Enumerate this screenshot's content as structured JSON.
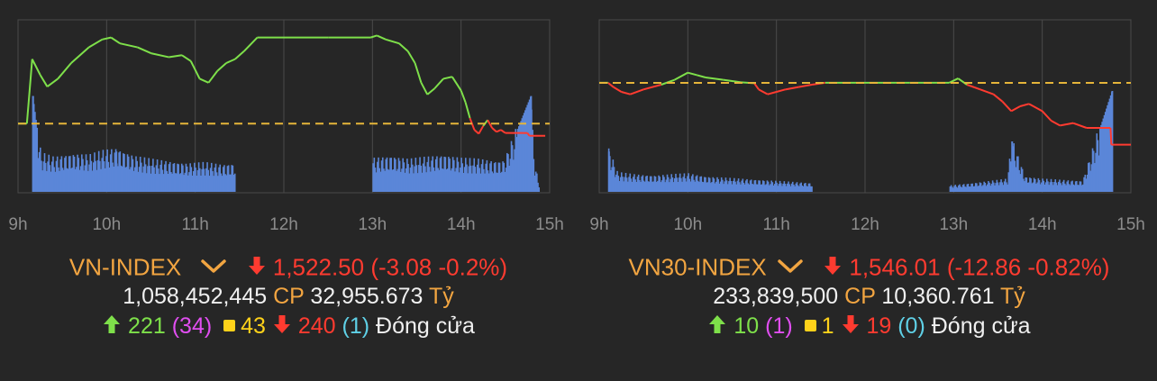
{
  "chart_data": [
    {
      "type": "line",
      "index": "VN-INDEX",
      "x_ticks": [
        "9h",
        "10h",
        "11h",
        "12h",
        "13h",
        "14h",
        "15h"
      ],
      "reference_level": 1525.58,
      "ylim": [
        1508,
        1552
      ],
      "volume_ylim": [
        0,
        100
      ],
      "price_series": [
        [
          9.0,
          1525.6
        ],
        [
          9.1,
          1525.6
        ],
        [
          9.16,
          1542.0
        ],
        [
          9.25,
          1538.0
        ],
        [
          9.33,
          1535.0
        ],
        [
          9.45,
          1537.0
        ],
        [
          9.6,
          1541.0
        ],
        [
          9.8,
          1545.0
        ],
        [
          9.95,
          1547.0
        ],
        [
          10.05,
          1547.5
        ],
        [
          10.15,
          1546.0
        ],
        [
          10.35,
          1545.0
        ],
        [
          10.5,
          1543.5
        ],
        [
          10.7,
          1542.5
        ],
        [
          10.85,
          1543.0
        ],
        [
          10.95,
          1541.5
        ],
        [
          11.05,
          1537.0
        ],
        [
          11.15,
          1536.0
        ],
        [
          11.25,
          1539.0
        ],
        [
          11.35,
          1541.0
        ],
        [
          11.45,
          1542.0
        ],
        [
          11.55,
          1544.0
        ],
        [
          11.7,
          1547.5
        ],
        [
          12.0,
          1547.5
        ],
        [
          12.5,
          1547.5
        ],
        [
          12.98,
          1547.5
        ],
        [
          13.05,
          1548.0
        ],
        [
          13.15,
          1547.0
        ],
        [
          13.3,
          1546.0
        ],
        [
          13.4,
          1544.0
        ],
        [
          13.48,
          1541.0
        ],
        [
          13.55,
          1536.0
        ],
        [
          13.62,
          1533.0
        ],
        [
          13.7,
          1534.5
        ],
        [
          13.8,
          1537.0
        ],
        [
          13.9,
          1537.5
        ],
        [
          14.0,
          1534.0
        ],
        [
          14.05,
          1531.0
        ],
        [
          14.1,
          1527.0
        ],
        [
          14.15,
          1524.0
        ],
        [
          14.2,
          1523.0
        ],
        [
          14.25,
          1525.0
        ],
        [
          14.3,
          1526.5
        ],
        [
          14.35,
          1524.5
        ],
        [
          14.4,
          1523.5
        ],
        [
          14.45,
          1524.0
        ],
        [
          14.5,
          1523.2
        ],
        [
          14.7,
          1523.2
        ],
        [
          14.75,
          1523.2
        ],
        [
          14.77,
          1522.5
        ],
        [
          14.95,
          1522.5
        ]
      ],
      "volume_series": [
        [
          9.16,
          95
        ],
        [
          9.25,
          36
        ],
        [
          9.4,
          32
        ],
        [
          9.6,
          35
        ],
        [
          9.8,
          34
        ],
        [
          9.95,
          38
        ],
        [
          10.1,
          40
        ],
        [
          10.3,
          33
        ],
        [
          10.5,
          30
        ],
        [
          10.7,
          28
        ],
        [
          10.9,
          26
        ],
        [
          11.1,
          27
        ],
        [
          11.3,
          25
        ],
        [
          11.45,
          26
        ],
        [
          13.0,
          31
        ],
        [
          13.2,
          33
        ],
        [
          13.4,
          30
        ],
        [
          13.6,
          32
        ],
        [
          13.8,
          34
        ],
        [
          14.0,
          31
        ],
        [
          14.2,
          30
        ],
        [
          14.4,
          28
        ],
        [
          14.48,
          29
        ],
        [
          14.78,
          95
        ],
        [
          14.82,
          28
        ],
        [
          14.88,
          4
        ]
      ]
    },
    {
      "type": "line",
      "index": "VN30-INDEX",
      "x_ticks": [
        "9h",
        "10h",
        "11h",
        "12h",
        "13h",
        "14h",
        "15h"
      ],
      "reference_level": 1558.87,
      "ylim": [
        1536,
        1572
      ],
      "volume_ylim": [
        0,
        100
      ],
      "price_series": [
        [
          9.0,
          1558.9
        ],
        [
          9.1,
          1558.9
        ],
        [
          9.16,
          1558.0
        ],
        [
          9.25,
          1557.0
        ],
        [
          9.35,
          1556.5
        ],
        [
          9.5,
          1557.5
        ],
        [
          9.7,
          1558.5
        ],
        [
          9.85,
          1559.5
        ],
        [
          10.0,
          1561.0
        ],
        [
          10.1,
          1560.5
        ],
        [
          10.2,
          1560.0
        ],
        [
          10.4,
          1559.5
        ],
        [
          10.6,
          1559.0
        ],
        [
          10.75,
          1558.8
        ],
        [
          10.8,
          1557.5
        ],
        [
          10.9,
          1556.5
        ],
        [
          11.0,
          1557.0
        ],
        [
          11.1,
          1557.5
        ],
        [
          11.25,
          1558.0
        ],
        [
          11.4,
          1558.5
        ],
        [
          11.55,
          1558.9
        ],
        [
          12.0,
          1558.9
        ],
        [
          12.5,
          1558.9
        ],
        [
          12.95,
          1558.9
        ],
        [
          13.05,
          1559.8
        ],
        [
          13.15,
          1558.5
        ],
        [
          13.3,
          1557.5
        ],
        [
          13.45,
          1556.5
        ],
        [
          13.55,
          1555.0
        ],
        [
          13.65,
          1553.0
        ],
        [
          13.75,
          1554.0
        ],
        [
          13.85,
          1554.5
        ],
        [
          14.0,
          1553.0
        ],
        [
          14.1,
          1551.0
        ],
        [
          14.2,
          1550.0
        ],
        [
          14.35,
          1550.5
        ],
        [
          14.5,
          1549.5
        ],
        [
          14.7,
          1549.5
        ],
        [
          14.77,
          1549.5
        ],
        [
          14.78,
          1546.0
        ],
        [
          15.0,
          1546.0
        ]
      ],
      "volume_series": [
        [
          9.1,
          40
        ],
        [
          9.2,
          18
        ],
        [
          9.4,
          16
        ],
        [
          9.6,
          15
        ],
        [
          9.8,
          16
        ],
        [
          10.0,
          17
        ],
        [
          10.2,
          14
        ],
        [
          10.4,
          13
        ],
        [
          10.6,
          12
        ],
        [
          10.8,
          11
        ],
        [
          11.0,
          10
        ],
        [
          11.2,
          9
        ],
        [
          11.4,
          8
        ],
        [
          12.95,
          6
        ],
        [
          13.2,
          8
        ],
        [
          13.4,
          10
        ],
        [
          13.6,
          12
        ],
        [
          13.65,
          50
        ],
        [
          13.8,
          14
        ],
        [
          14.0,
          12
        ],
        [
          14.2,
          11
        ],
        [
          14.45,
          10
        ],
        [
          14.78,
          100
        ]
      ]
    }
  ],
  "vnindex": {
    "name": "VN-INDEX",
    "value": "1,522.50",
    "change": "(-3.08 -0.2%)",
    "volume": "1,058,452,445",
    "cp_label": "CP",
    "value_traded": "32,955.673",
    "unit": "Tỷ",
    "advances": "221",
    "ceiling": "(34)",
    "unchanged": "43",
    "declines": "240",
    "floor": "(1)",
    "status": "Đóng cửa"
  },
  "vn30": {
    "name": "VN30-INDEX",
    "value": "1,546.01",
    "change": "(-12.86 -0.82%)",
    "volume": "233,839,500",
    "cp_label": "CP",
    "value_traded": "10,360.761",
    "unit": "Tỷ",
    "advances": "10",
    "ceiling": "(1)",
    "unchanged": "1",
    "declines": "19",
    "floor": "(0)",
    "status": "Đóng cửa"
  },
  "colors": {
    "up": "#7ee04a",
    "down": "#ff3b30",
    "reference": "#e5b53a",
    "volume": "#5b86d8",
    "grid": "#4a4a4a",
    "axis_text": "#8c8c8c"
  }
}
